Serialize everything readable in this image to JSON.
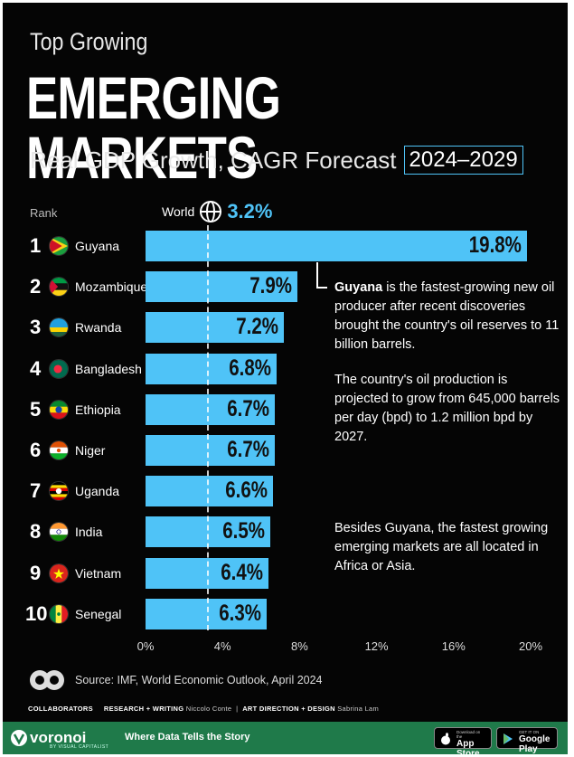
{
  "header": {
    "top_line": "Top Growing",
    "title": "EMERGING MARKETS",
    "subtitle": "Real GDP Growth, CAGR Forecast",
    "years": "2024–2029",
    "rank_label": "Rank"
  },
  "world": {
    "label": "World",
    "value_label": "3.2%"
  },
  "rows": [
    {
      "rank": "1",
      "country": "Guyana",
      "label": "19.8%"
    },
    {
      "rank": "2",
      "country": "Mozambique",
      "label": "7.9%"
    },
    {
      "rank": "3",
      "country": "Rwanda",
      "label": "7.2%"
    },
    {
      "rank": "4",
      "country": "Bangladesh",
      "label": "6.8%"
    },
    {
      "rank": "5",
      "country": "Ethiopia",
      "label": "6.7%"
    },
    {
      "rank": "6",
      "country": "Niger",
      "label": "6.7%"
    },
    {
      "rank": "7",
      "country": "Uganda",
      "label": "6.6%"
    },
    {
      "rank": "8",
      "country": "India",
      "label": "6.5%"
    },
    {
      "rank": "9",
      "country": "Vietnam",
      "label": "6.4%"
    },
    {
      "rank": "10",
      "country": "Senegal",
      "label": "6.3%"
    }
  ],
  "axis_ticks": [
    "0%",
    "4%",
    "8%",
    "12%",
    "16%",
    "20%"
  ],
  "notes": {
    "n1_bold": "Guyana",
    "n1_rest": " is the fastest-growing new oil producer after recent discoveries brought the country's oil reserves to 11 billion barrels.",
    "n2": "The country's oil production is projected to grow from 645,000 barrels per day (bpd) to 1.2 million bpd by 2027.",
    "n3": "Besides Guyana, the fastest growing emerging markets are all located in Africa or Asia."
  },
  "source": "Source: IMF, World Economic Outlook, April 2024",
  "collaborators": {
    "label": "COLLABORATORS",
    "research_role": "RESEARCH + WRITING",
    "research_name": "Niccolo Conte",
    "art_role": "ART DIRECTION + DESIGN",
    "art_name": "Sabrina Lam"
  },
  "footer": {
    "brand": "voronoi",
    "brand_sub": "BY VISUAL CAPITALIST",
    "tagline": "Where Data Tells the Story",
    "app_store_small": "Download on the",
    "app_store": "App Store",
    "google_small": "GET IT ON",
    "google": "Google Play"
  },
  "colors": {
    "bar": "#4fc3f7",
    "background": "#050505",
    "footer": "#1f7a4a"
  },
  "chart_data": {
    "type": "bar",
    "orientation": "horizontal",
    "categories": [
      "Guyana",
      "Mozambique",
      "Rwanda",
      "Bangladesh",
      "Ethiopia",
      "Niger",
      "Uganda",
      "India",
      "Vietnam",
      "Senegal"
    ],
    "values": [
      19.8,
      7.9,
      7.2,
      6.8,
      6.7,
      6.7,
      6.6,
      6.5,
      6.4,
      6.3
    ],
    "reference_line": {
      "label": "World",
      "value": 3.2
    },
    "xlim": [
      0,
      20
    ],
    "xticks": [
      0,
      4,
      8,
      12,
      16,
      20
    ],
    "grid": false
  }
}
